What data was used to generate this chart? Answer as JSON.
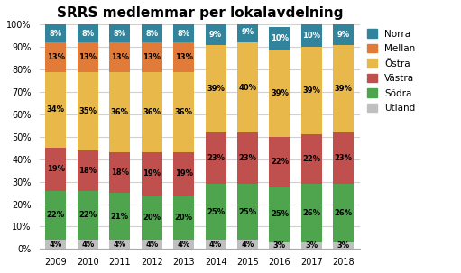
{
  "title": "SRRS medlemmar per lokalavdelning",
  "years": [
    2009,
    2010,
    2011,
    2012,
    2013,
    2014,
    2015,
    2016,
    2017,
    2018
  ],
  "categories": [
    "Utland",
    "Södra",
    "Västra",
    "Östra",
    "Mellan",
    "Norra"
  ],
  "colors": {
    "Utland": "#bfbfbf",
    "Södra": "#4ea54e",
    "Västra": "#c0504d",
    "Östra": "#e8b84b",
    "Mellan": "#e07b39",
    "Norra": "#31849b"
  },
  "data": {
    "Utland": [
      4,
      4,
      4,
      4,
      4,
      4,
      4,
      3,
      3,
      3
    ],
    "Södra": [
      22,
      22,
      21,
      20,
      20,
      25,
      25,
      25,
      26,
      26
    ],
    "Västra": [
      19,
      18,
      18,
      19,
      19,
      23,
      23,
      22,
      22,
      23
    ],
    "Östra": [
      34,
      35,
      36,
      36,
      36,
      39,
      40,
      39,
      39,
      39
    ],
    "Mellan": [
      13,
      13,
      13,
      13,
      13,
      0,
      0,
      0,
      0,
      0
    ],
    "Norra": [
      8,
      8,
      8,
      8,
      8,
      9,
      9,
      10,
      10,
      9
    ]
  },
  "ylim": [
    0,
    100
  ],
  "yticks": [
    0,
    10,
    20,
    30,
    40,
    50,
    60,
    70,
    80,
    90,
    100
  ],
  "ytick_labels": [
    "0%",
    "10%",
    "20%",
    "30%",
    "40%",
    "50%",
    "60%",
    "70%",
    "80%",
    "90%",
    "100%"
  ],
  "legend_order": [
    "Norra",
    "Mellan",
    "Östra",
    "Västra",
    "Södra",
    "Utland"
  ],
  "figsize": [
    5.11,
    3.03
  ],
  "dpi": 100,
  "bg_color": "#ffffff",
  "grid_color": "#d0d0d0",
  "bar_width": 0.65,
  "title_fontsize": 11,
  "tick_fontsize": 7,
  "label_fontsize": 6,
  "legend_fontsize": 7.5
}
